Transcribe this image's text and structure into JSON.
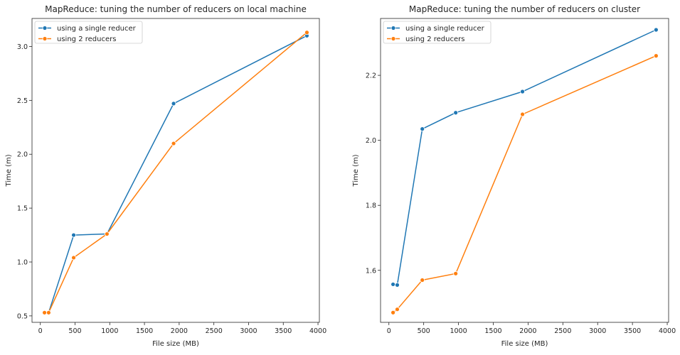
{
  "colors": {
    "series_1": "#1f77b4",
    "series_2": "#ff7f0e",
    "axis": "#262626"
  },
  "chart_data": [
    {
      "type": "line",
      "title": "MapReduce: tuning the number of reducers on local machine",
      "xlabel": "File size (MB)",
      "ylabel": "Time (m)",
      "xlim": [
        -120,
        4020
      ],
      "ylim": [
        0.44,
        3.26
      ],
      "xticks": [
        0,
        500,
        1000,
        1500,
        2000,
        2500,
        3000,
        3500,
        4000
      ],
      "yticks": [
        0.5,
        1.0,
        1.5,
        2.0,
        2.5,
        3.0
      ],
      "xtick_labels": [
        "0",
        "500",
        "1000",
        "1500",
        "2000",
        "2500",
        "3000",
        "3500",
        "4000"
      ],
      "ytick_labels": [
        "0.5",
        "1.0",
        "1.5",
        "2.0",
        "2.5",
        "3.0"
      ],
      "grid": false,
      "legend_position": "upper-left",
      "series": [
        {
          "name": "using a single reducer",
          "x": [
            120,
            480,
            960,
            1920,
            3840
          ],
          "y": [
            0.53,
            1.25,
            1.26,
            2.47,
            3.1
          ]
        },
        {
          "name": "using 2 reducers",
          "x": [
            60,
            120,
            480,
            960,
            1920,
            3840
          ],
          "y": [
            0.53,
            0.53,
            1.04,
            1.26,
            2.1,
            3.13
          ]
        }
      ]
    },
    {
      "type": "line",
      "title": "MapReduce: tuning the number of reducers on cluster",
      "xlabel": "File size (MB)",
      "ylabel": "Time (m)",
      "xlim": [
        -120,
        4020
      ],
      "ylim": [
        1.44,
        2.375
      ],
      "xticks": [
        0,
        500,
        1000,
        1500,
        2000,
        2500,
        3000,
        3500,
        4000
      ],
      "yticks": [
        1.6,
        1.8,
        2.0,
        2.2
      ],
      "xtick_labels": [
        "0",
        "500",
        "1000",
        "1500",
        "2000",
        "2500",
        "3000",
        "3500",
        "4000"
      ],
      "ytick_labels": [
        "1.6",
        "1.8",
        "2.0",
        "2.2"
      ],
      "grid": false,
      "legend_position": "upper-left",
      "series": [
        {
          "name": "using a single reducer",
          "x": [
            60,
            120,
            480,
            960,
            1920,
            3840
          ],
          "y": [
            1.557,
            1.555,
            2.035,
            2.085,
            2.15,
            2.34
          ]
        },
        {
          "name": "using 2 reducers",
          "x": [
            60,
            120,
            480,
            960,
            1920,
            3840
          ],
          "y": [
            1.47,
            1.48,
            1.57,
            1.59,
            2.08,
            2.26
          ]
        }
      ]
    }
  ]
}
